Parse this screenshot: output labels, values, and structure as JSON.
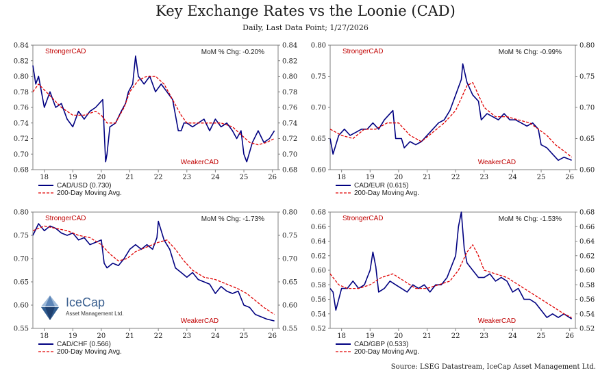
{
  "header": {
    "title": "Key Exchange Rates vs the Loonie (CAD)",
    "subtitle": "Daily,  Last Data Point; 1/27/2026",
    "source": "Source: LSEG Datastream, IceCap Asset Management Ltd."
  },
  "logo": {
    "name": "IceCap",
    "tagline": "Asset Management Ltd."
  },
  "colors": {
    "series": "#000080",
    "moving_avg": "#e00000",
    "annotation": "#c00000"
  },
  "chart_data": [
    {
      "type": "line",
      "panel": "top-left",
      "x_tick_labels": [
        "18",
        "19",
        "20",
        "21",
        "22",
        "23",
        "24",
        "25",
        "26"
      ],
      "x_range": [
        2017.6,
        2026.2
      ],
      "ylim": [
        0.68,
        0.84
      ],
      "y_ticks": [
        "0.68",
        "0.70",
        "0.72",
        "0.74",
        "0.76",
        "0.78",
        "0.80",
        "0.82",
        "0.84"
      ],
      "annotation_top": "StrongerCAD",
      "annotation_bottom": "WeakerCAD",
      "mom_change": "MoM % Chg: -0.20%",
      "legend_position": "bottom-left",
      "series": [
        {
          "name": "CAD/USD (0.730)",
          "x": [
            2017.6,
            2017.7,
            2017.8,
            2018.0,
            2018.2,
            2018.4,
            2018.6,
            2018.8,
            2019.0,
            2019.2,
            2019.4,
            2019.6,
            2019.8,
            2019.95,
            2020.05,
            2020.15,
            2020.2,
            2020.3,
            2020.5,
            2020.7,
            2020.85,
            2020.95,
            2021.1,
            2021.2,
            2021.3,
            2021.5,
            2021.7,
            2021.9,
            2022.1,
            2022.3,
            2022.5,
            2022.7,
            2022.8,
            2022.9,
            2023.0,
            2023.2,
            2023.4,
            2023.6,
            2023.8,
            2024.0,
            2024.2,
            2024.4,
            2024.6,
            2024.75,
            2024.9,
            2025.0,
            2025.1,
            2025.3,
            2025.5,
            2025.7,
            2025.9,
            2026.07
          ],
          "values": [
            0.814,
            0.79,
            0.8,
            0.76,
            0.78,
            0.76,
            0.765,
            0.745,
            0.735,
            0.755,
            0.745,
            0.755,
            0.76,
            0.766,
            0.77,
            0.69,
            0.7,
            0.735,
            0.74,
            0.755,
            0.765,
            0.78,
            0.79,
            0.826,
            0.8,
            0.79,
            0.8,
            0.78,
            0.79,
            0.78,
            0.77,
            0.73,
            0.73,
            0.74,
            0.74,
            0.735,
            0.74,
            0.745,
            0.73,
            0.745,
            0.735,
            0.74,
            0.73,
            0.72,
            0.73,
            0.7,
            0.69,
            0.715,
            0.73,
            0.715,
            0.72,
            0.73
          ]
        },
        {
          "name": "200-Day Moving Avg.",
          "x": [
            2017.6,
            2017.8,
            2018.2,
            2018.6,
            2019.0,
            2019.4,
            2019.8,
            2020.0,
            2020.2,
            2020.5,
            2020.8,
            2021.0,
            2021.3,
            2021.6,
            2021.9,
            2022.2,
            2022.5,
            2022.8,
            2023.0,
            2023.4,
            2023.8,
            2024.2,
            2024.6,
            2024.9,
            2025.2,
            2025.5,
            2025.8,
            2026.07
          ],
          "values": [
            0.78,
            0.79,
            0.775,
            0.76,
            0.75,
            0.75,
            0.755,
            0.75,
            0.74,
            0.74,
            0.76,
            0.78,
            0.795,
            0.8,
            0.8,
            0.79,
            0.77,
            0.75,
            0.74,
            0.74,
            0.74,
            0.74,
            0.735,
            0.725,
            0.715,
            0.712,
            0.715,
            0.72
          ]
        }
      ]
    },
    {
      "type": "line",
      "panel": "top-right",
      "x_tick_labels": [
        "18",
        "19",
        "20",
        "21",
        "22",
        "23",
        "24",
        "25",
        "26"
      ],
      "x_range": [
        2017.6,
        2026.2
      ],
      "ylim": [
        0.6,
        0.8
      ],
      "y_ticks": [
        "0.60",
        "0.65",
        "0.70",
        "0.75",
        "0.80"
      ],
      "annotation_top": "StrongerCAD",
      "annotation_bottom": "WeakerCAD",
      "mom_change": "MoM % Chg: -0.99%",
      "legend_position": "bottom-left",
      "series": [
        {
          "name": "CAD/EUR (0.615)",
          "x": [
            2017.6,
            2017.7,
            2017.9,
            2018.1,
            2018.3,
            2018.5,
            2018.7,
            2018.9,
            2019.1,
            2019.3,
            2019.5,
            2019.7,
            2019.8,
            2019.9,
            2020.1,
            2020.2,
            2020.4,
            2020.6,
            2020.8,
            2021.0,
            2021.2,
            2021.4,
            2021.6,
            2021.8,
            2022.0,
            2022.2,
            2022.25,
            2022.4,
            2022.6,
            2022.8,
            2022.9,
            2023.1,
            2023.3,
            2023.5,
            2023.7,
            2023.9,
            2024.1,
            2024.3,
            2024.5,
            2024.7,
            2024.9,
            2025.0,
            2025.2,
            2025.4,
            2025.6,
            2025.8,
            2026.07
          ],
          "values": [
            0.65,
            0.625,
            0.655,
            0.665,
            0.655,
            0.66,
            0.665,
            0.665,
            0.675,
            0.665,
            0.68,
            0.69,
            0.695,
            0.65,
            0.65,
            0.635,
            0.645,
            0.64,
            0.645,
            0.655,
            0.665,
            0.675,
            0.68,
            0.695,
            0.72,
            0.745,
            0.77,
            0.74,
            0.72,
            0.71,
            0.68,
            0.69,
            0.685,
            0.68,
            0.69,
            0.68,
            0.68,
            0.675,
            0.67,
            0.675,
            0.665,
            0.64,
            0.635,
            0.625,
            0.615,
            0.62,
            0.615
          ]
        },
        {
          "name": "200-Day Moving Avg.",
          "x": [
            2017.6,
            2018.0,
            2018.4,
            2018.8,
            2019.2,
            2019.6,
            2020.0,
            2020.4,
            2020.8,
            2021.2,
            2021.6,
            2022.0,
            2022.4,
            2022.6,
            2022.8,
            2023.0,
            2023.4,
            2023.8,
            2024.2,
            2024.6,
            2024.9,
            2025.2,
            2025.5,
            2025.8,
            2026.07
          ],
          "values": [
            0.665,
            0.655,
            0.65,
            0.665,
            0.665,
            0.675,
            0.675,
            0.655,
            0.645,
            0.66,
            0.675,
            0.695,
            0.735,
            0.74,
            0.72,
            0.7,
            0.685,
            0.685,
            0.68,
            0.675,
            0.665,
            0.655,
            0.64,
            0.63,
            0.62
          ]
        }
      ]
    },
    {
      "type": "line",
      "panel": "bottom-left",
      "x_tick_labels": [
        "18",
        "19",
        "20",
        "21",
        "22",
        "23",
        "24",
        "25",
        "26"
      ],
      "x_range": [
        2017.6,
        2026.2
      ],
      "ylim": [
        0.55,
        0.8
      ],
      "y_ticks": [
        "0.55",
        "0.60",
        "0.65",
        "0.70",
        "0.75",
        "0.80"
      ],
      "annotation_top": "StrongerCAD",
      "annotation_bottom": "WeakerCAD",
      "mom_change": "MoM % Chg: -1.73%",
      "legend_position": "bottom-left",
      "series": [
        {
          "name": "CAD/CHF (0.566)",
          "x": [
            2017.6,
            2017.8,
            2018.0,
            2018.2,
            2018.4,
            2018.6,
            2018.8,
            2019.0,
            2019.2,
            2019.4,
            2019.6,
            2019.8,
            2020.0,
            2020.1,
            2020.2,
            2020.4,
            2020.6,
            2020.8,
            2021.0,
            2021.2,
            2021.4,
            2021.6,
            2021.8,
            2021.95,
            2022.0,
            2022.2,
            2022.4,
            2022.6,
            2022.8,
            2023.0,
            2023.2,
            2023.4,
            2023.6,
            2023.8,
            2024.0,
            2024.2,
            2024.4,
            2024.6,
            2024.8,
            2025.0,
            2025.2,
            2025.4,
            2025.6,
            2025.8,
            2026.07
          ],
          "values": [
            0.75,
            0.775,
            0.76,
            0.77,
            0.765,
            0.755,
            0.75,
            0.755,
            0.74,
            0.745,
            0.73,
            0.735,
            0.74,
            0.69,
            0.68,
            0.69,
            0.685,
            0.7,
            0.72,
            0.73,
            0.72,
            0.73,
            0.72,
            0.745,
            0.78,
            0.74,
            0.72,
            0.68,
            0.67,
            0.66,
            0.67,
            0.655,
            0.65,
            0.645,
            0.625,
            0.64,
            0.63,
            0.625,
            0.63,
            0.6,
            0.595,
            0.58,
            0.575,
            0.57,
            0.566
          ]
        },
        {
          "name": "200-Day Moving Avg.",
          "x": [
            2017.6,
            2018.0,
            2018.4,
            2018.8,
            2019.2,
            2019.6,
            2020.0,
            2020.3,
            2020.6,
            2020.9,
            2021.2,
            2021.6,
            2022.0,
            2022.3,
            2022.6,
            2022.9,
            2023.2,
            2023.6,
            2024.0,
            2024.4,
            2024.8,
            2025.1,
            2025.4,
            2025.7,
            2026.07
          ],
          "values": [
            0.76,
            0.77,
            0.765,
            0.76,
            0.75,
            0.745,
            0.73,
            0.71,
            0.695,
            0.7,
            0.715,
            0.725,
            0.735,
            0.74,
            0.72,
            0.695,
            0.675,
            0.66,
            0.655,
            0.645,
            0.635,
            0.625,
            0.61,
            0.595,
            0.58
          ]
        }
      ]
    },
    {
      "type": "line",
      "panel": "bottom-right",
      "x_tick_labels": [
        "18",
        "19",
        "20",
        "21",
        "22",
        "23",
        "24",
        "25",
        "26"
      ],
      "x_range": [
        2017.6,
        2026.2
      ],
      "ylim": [
        0.52,
        0.68
      ],
      "y_ticks": [
        "0.52",
        "0.54",
        "0.56",
        "0.58",
        "0.60",
        "0.62",
        "0.64",
        "0.66",
        "0.68"
      ],
      "annotation_top": "StrongerCAD",
      "annotation_bottom": "WeakerCAD",
      "mom_change": "MoM % Chg: -1.53%",
      "legend_position": "bottom-left",
      "series": [
        {
          "name": "CAD/GBP (0.533)",
          "x": [
            2017.6,
            2017.7,
            2017.8,
            2018.0,
            2018.2,
            2018.4,
            2018.6,
            2018.8,
            2018.9,
            2019.0,
            2019.1,
            2019.2,
            2019.3,
            2019.5,
            2019.7,
            2019.9,
            2020.1,
            2020.3,
            2020.5,
            2020.7,
            2020.9,
            2021.1,
            2021.3,
            2021.5,
            2021.7,
            2021.9,
            2022.0,
            2022.1,
            2022.2,
            2022.3,
            2022.4,
            2022.6,
            2022.8,
            2023.0,
            2023.2,
            2023.4,
            2023.6,
            2023.8,
            2024.0,
            2024.2,
            2024.4,
            2024.6,
            2024.8,
            2025.0,
            2025.2,
            2025.4,
            2025.6,
            2025.8,
            2026.07
          ],
          "values": [
            0.575,
            0.57,
            0.545,
            0.575,
            0.575,
            0.585,
            0.575,
            0.58,
            0.59,
            0.6,
            0.625,
            0.605,
            0.57,
            0.575,
            0.585,
            0.58,
            0.575,
            0.57,
            0.58,
            0.575,
            0.58,
            0.57,
            0.58,
            0.58,
            0.59,
            0.61,
            0.62,
            0.66,
            0.68,
            0.63,
            0.61,
            0.6,
            0.59,
            0.59,
            0.595,
            0.585,
            0.59,
            0.585,
            0.57,
            0.575,
            0.56,
            0.56,
            0.555,
            0.545,
            0.535,
            0.54,
            0.535,
            0.54,
            0.533
          ]
        },
        {
          "name": "200-Day Moving Avg.",
          "x": [
            2017.6,
            2017.9,
            2018.2,
            2018.6,
            2019.0,
            2019.4,
            2019.8,
            2020.2,
            2020.6,
            2021.0,
            2021.4,
            2021.8,
            2022.1,
            2022.4,
            2022.6,
            2022.8,
            2023.0,
            2023.4,
            2023.8,
            2024.2,
            2024.6,
            2025.0,
            2025.4,
            2025.8,
            2026.07
          ],
          "values": [
            0.595,
            0.58,
            0.575,
            0.575,
            0.58,
            0.59,
            0.595,
            0.585,
            0.575,
            0.575,
            0.58,
            0.585,
            0.6,
            0.625,
            0.635,
            0.62,
            0.6,
            0.595,
            0.59,
            0.58,
            0.57,
            0.56,
            0.55,
            0.54,
            0.535
          ]
        }
      ]
    }
  ]
}
